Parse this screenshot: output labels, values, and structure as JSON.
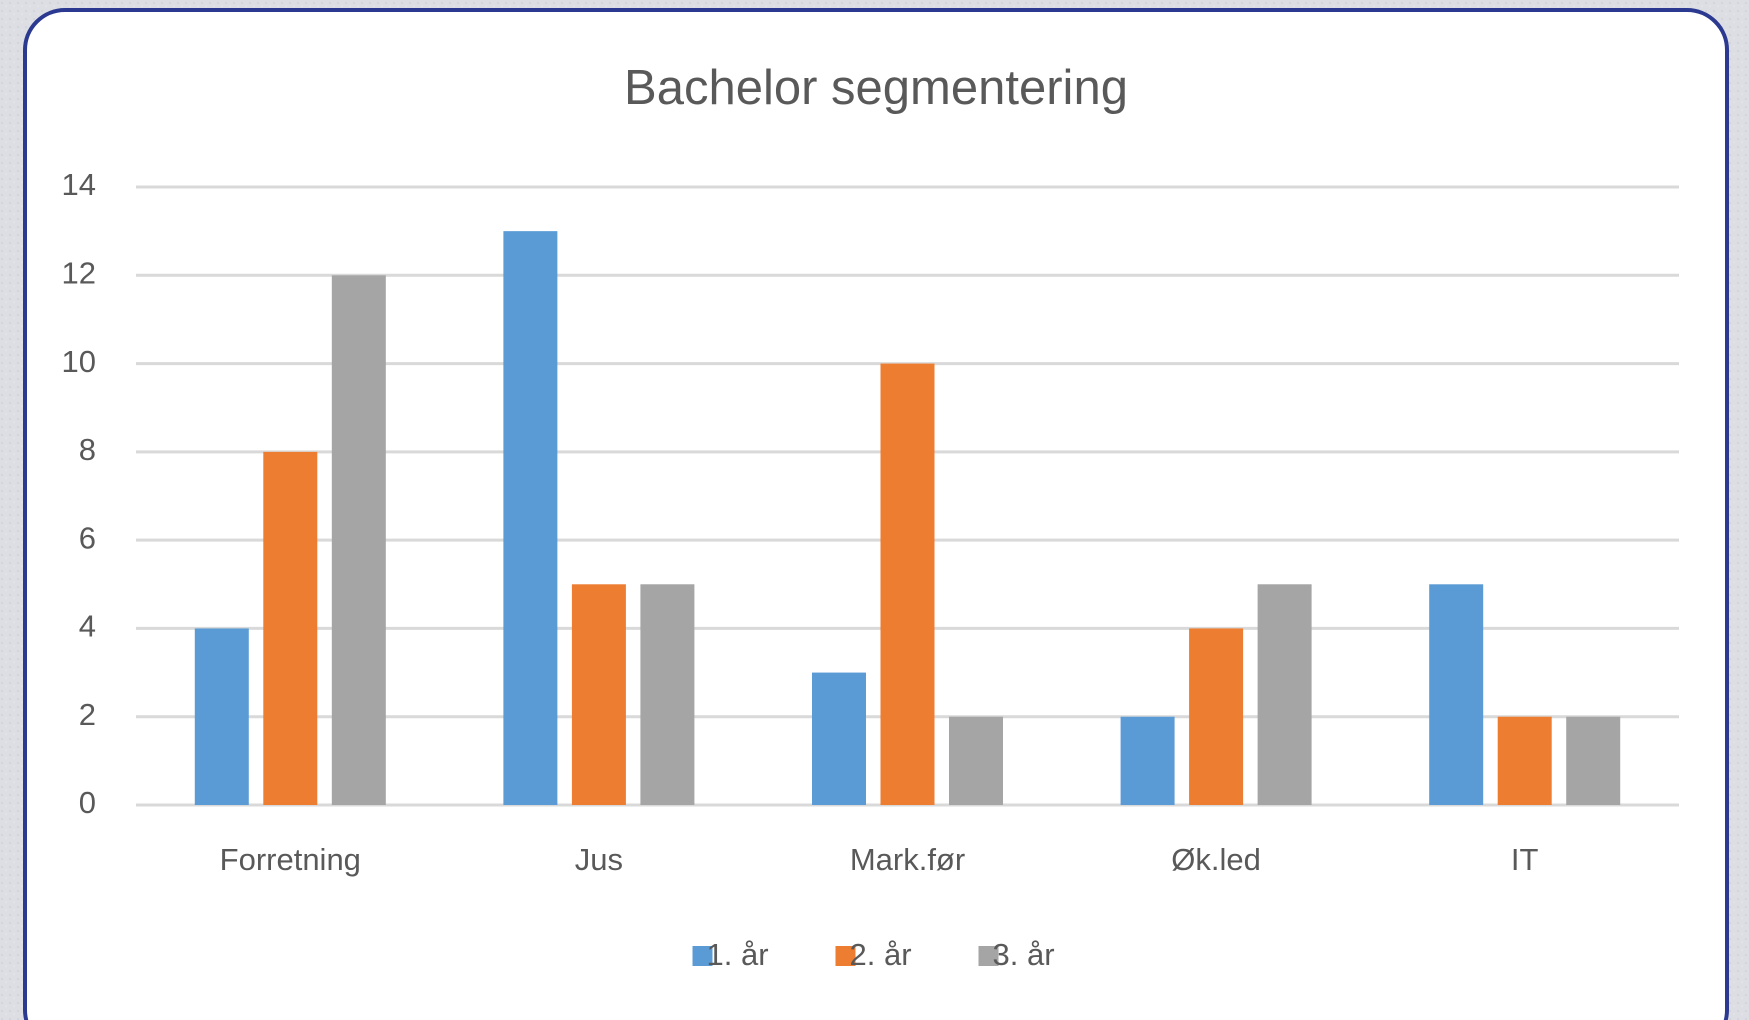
{
  "chart_data": {
    "type": "bar",
    "title": "Bachelor segmentering",
    "categories": [
      "Forretning",
      "Jus",
      "Mark.før",
      "Øk.led",
      "IT"
    ],
    "series": [
      {
        "name": "1. år",
        "color": "#5b9bd5",
        "values": [
          4,
          13,
          3,
          2,
          5
        ]
      },
      {
        "name": "2. år",
        "color": "#ed7d31",
        "values": [
          8,
          5,
          10,
          4,
          2
        ]
      },
      {
        "name": "3. år",
        "color": "#a5a5a5",
        "values": [
          12,
          5,
          2,
          5,
          2
        ]
      }
    ],
    "ylim": [
      0,
      14
    ],
    "yticks": [
      0,
      2,
      4,
      6,
      8,
      10,
      12,
      14
    ],
    "grid": true,
    "legend": "bottom"
  }
}
